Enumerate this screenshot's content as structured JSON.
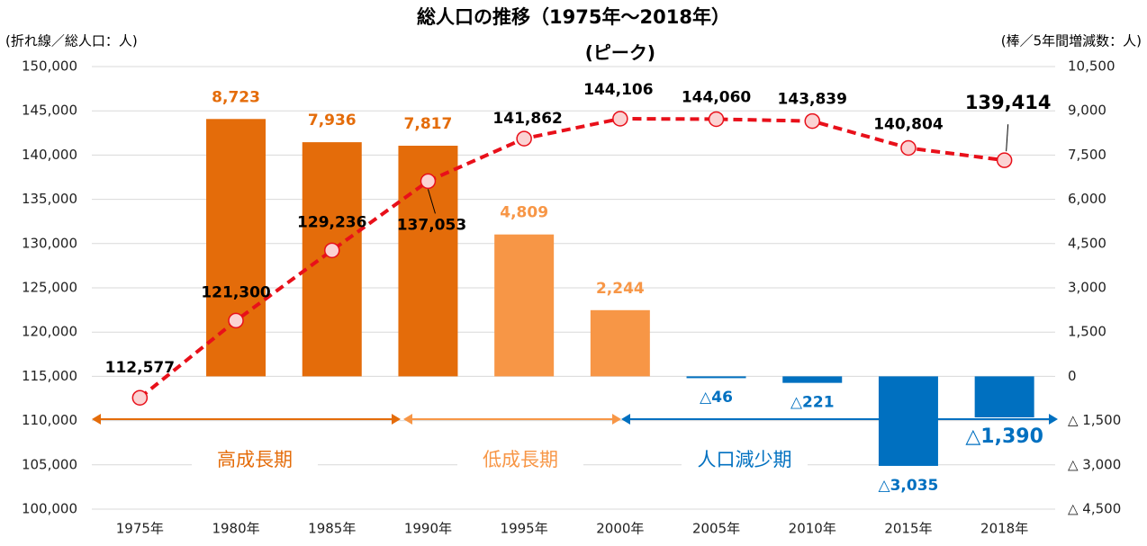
{
  "chart_data": {
    "type": "combo",
    "title": "総人口の推移（1975年〜2018年）",
    "y_axis_label": "(折れ線／総人口：人)",
    "y2_axis_label": "(棒／5年間増減数：人)",
    "categories": [
      "1975年",
      "1980年",
      "1985年",
      "1990年",
      "1995年",
      "2000年",
      "2005年",
      "2010年",
      "2015年",
      "2018年"
    ],
    "series": [
      {
        "kind": "line",
        "color": "#e8101a",
        "marker_fill": "#fbd3d3",
        "values": [
          112577,
          121300,
          129236,
          137053,
          141862,
          144106,
          144060,
          143839,
          140804,
          139414
        ],
        "value_labels": [
          "112,577",
          "121,300",
          "129,236",
          "137,053",
          "141,862",
          "144,106",
          "144,060",
          "143,839",
          "140,804",
          "139,414"
        ]
      },
      {
        "kind": "bar",
        "axis": "y2",
        "colors": [
          null,
          "#e46c0a",
          "#e46c0a",
          "#e46c0a",
          "#f79646",
          "#f79646",
          "#0070c0",
          "#0070c0",
          "#0070c0",
          "#0070c0"
        ],
        "values": [
          null,
          8723,
          7936,
          7817,
          4809,
          2244,
          -46,
          -221,
          -3035,
          -1390
        ],
        "value_labels": [
          null,
          "8,723",
          "7,936",
          "7,817",
          "4,809",
          "2,244",
          "△46",
          "△221",
          "△3,035",
          "△1,390"
        ]
      }
    ],
    "annotations": [
      {
        "text": "(ピーク)",
        "category": "2000年"
      }
    ],
    "periods": [
      {
        "label": "高成長期",
        "color": "#e46c0a"
      },
      {
        "label": "低成長期",
        "color": "#f79646"
      },
      {
        "label": "人口減少期",
        "color": "#0070c0"
      }
    ],
    "ylim": [
      100000,
      150000
    ],
    "yticks": [
      {
        "value": 100000,
        "label": "100,000"
      },
      {
        "value": 105000,
        "label": "105,000"
      },
      {
        "value": 110000,
        "label": "110,000"
      },
      {
        "value": 115000,
        "label": "115,000"
      },
      {
        "value": 120000,
        "label": "120,000"
      },
      {
        "value": 125000,
        "label": "125,000"
      },
      {
        "value": 130000,
        "label": "130,000"
      },
      {
        "value": 135000,
        "label": "135,000"
      },
      {
        "value": 140000,
        "label": "140,000"
      },
      {
        "value": 145000,
        "label": "145,000"
      },
      {
        "value": 150000,
        "label": "150,000"
      }
    ],
    "y2lim": [
      -4500,
      10500
    ],
    "y2ticks": [
      {
        "value": -4500,
        "label": "△ 4,500"
      },
      {
        "value": -3000,
        "label": "△ 3,000"
      },
      {
        "value": -1500,
        "label": "△ 1,500"
      },
      0,
      {
        "value": 1500,
        "label": "1,500"
      },
      {
        "value": 3000,
        "label": "3,000"
      },
      {
        "value": 4500,
        "label": "4,500"
      },
      {
        "value": 6000,
        "label": "6,000"
      },
      {
        "value": 7500,
        "label": "7,500"
      },
      {
        "value": 9000,
        "label": "9,000"
      },
      {
        "value": 10500,
        "label": "10,500"
      }
    ],
    "grid": true
  }
}
